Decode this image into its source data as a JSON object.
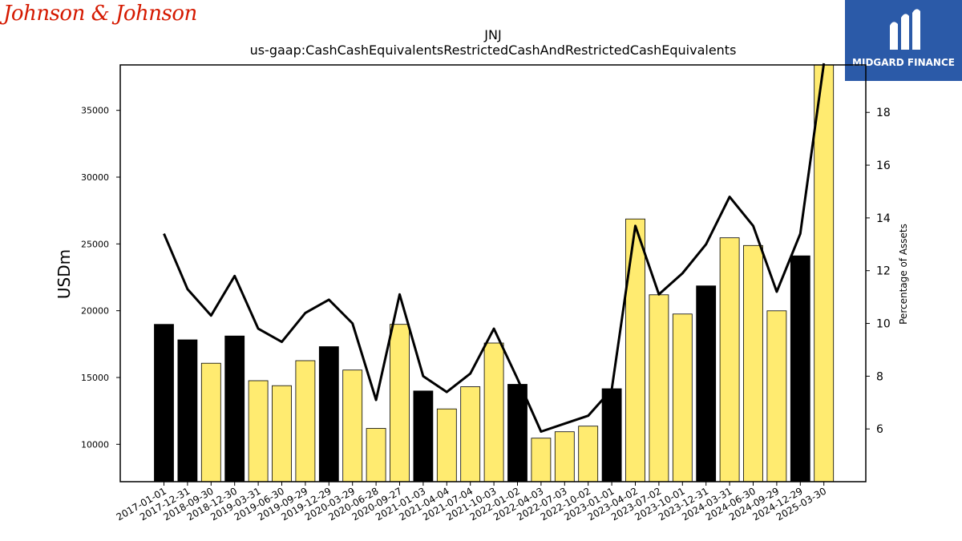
{
  "logos": {
    "left_text": "Johnson & Johnson",
    "right_text": "MIDGARD FINANCE"
  },
  "colors": {
    "bar_black": "#000000",
    "bar_yellow": "#ffeb70",
    "line": "#000000",
    "logo_red": "#d51900",
    "logo_blue": "#2b5aa8"
  },
  "chart_data": {
    "type": "bar",
    "title": "JNJ",
    "subtitle": "us-gaap:CashCashEquivalentsRestrictedCashAndRestrictedCashEquivalents",
    "ylabel": "USDm",
    "y2label": "Percentage of Assets",
    "ylim": [
      7200,
      38400
    ],
    "y2lim": [
      4.0,
      19.8
    ],
    "yticks": [
      10000,
      15000,
      20000,
      25000,
      30000,
      35000
    ],
    "y2ticks": [
      6,
      8,
      10,
      12,
      14,
      16,
      18
    ],
    "categories": [
      "2017-01-01",
      "2017-12-31",
      "2018-09-30",
      "2018-12-30",
      "2019-03-31",
      "2019-06-30",
      "2019-09-29",
      "2019-12-29",
      "2020-03-29",
      "2020-06-28",
      "2020-09-27",
      "2021-01-03",
      "2021-04-04",
      "2021-07-04",
      "2021-10-03",
      "2022-01-02",
      "2022-04-03",
      "2022-07-03",
      "2022-10-02",
      "2023-01-01",
      "2023-04-02",
      "2023-07-02",
      "2023-10-01",
      "2023-12-31",
      "2024-03-31",
      "2024-06-30",
      "2024-09-29",
      "2024-12-29",
      "2025-03-30"
    ],
    "series": [
      {
        "kind": "bar",
        "values": [
          18980,
          17820,
          16070,
          18110,
          14760,
          14390,
          16260,
          17310,
          15560,
          11190,
          18980,
          13990,
          12650,
          14310,
          17580,
          14490,
          10460,
          10940,
          11360,
          14160,
          26870,
          21190,
          19750,
          21860,
          25460,
          24880,
          19990,
          24110,
          38500
        ],
        "year_end": [
          true,
          true,
          false,
          true,
          false,
          false,
          false,
          true,
          false,
          false,
          false,
          true,
          false,
          false,
          false,
          true,
          false,
          false,
          false,
          true,
          false,
          false,
          false,
          true,
          false,
          false,
          false,
          true,
          false
        ]
      },
      {
        "kind": "line",
        "axis": "right",
        "values": [
          13.4,
          11.3,
          10.3,
          11.8,
          9.8,
          9.3,
          10.4,
          10.9,
          10.0,
          7.1,
          11.1,
          8.0,
          7.4,
          8.1,
          9.8,
          7.9,
          5.9,
          6.2,
          6.5,
          7.5,
          13.7,
          11.1,
          11.9,
          13.0,
          14.8,
          13.7,
          11.2,
          13.4,
          20.0
        ]
      }
    ],
    "legend": "none",
    "grid": false
  }
}
